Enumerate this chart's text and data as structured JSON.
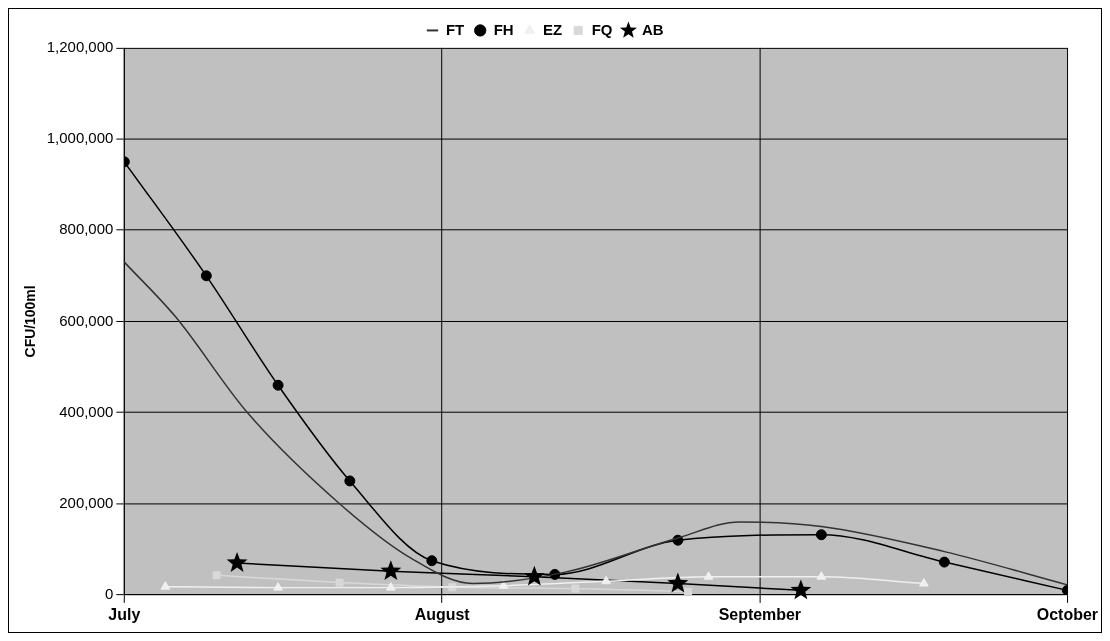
{
  "chart_data": {
    "type": "line",
    "ylabel": "CFU/100ml",
    "xlim": [
      "--07-01",
      "--10-01"
    ],
    "xticks": [
      {
        "value": "--07-01",
        "label": "July"
      },
      {
        "value": "--08-01",
        "label": "August"
      },
      {
        "value": "--09-01",
        "label": "September"
      },
      {
        "value": "--10-01",
        "label": "October"
      }
    ],
    "ylim": [
      0,
      1200000
    ],
    "yticks": [
      {
        "value": 0,
        "label": "0"
      },
      {
        "value": 200000,
        "label": "200,000"
      },
      {
        "value": 400000,
        "label": "400,000"
      },
      {
        "value": 600000,
        "label": "600,000"
      },
      {
        "value": 800000,
        "label": "800,000"
      },
      {
        "value": 1000000,
        "label": "1,000,000"
      },
      {
        "value": 1200000,
        "label": "1,200,000"
      }
    ],
    "grid": true,
    "legend": "top",
    "line_style": "solid",
    "series": [
      {
        "name": "FT",
        "color": "#333333",
        "marker": "none",
        "x": [
          "--07-01",
          "--07-06",
          "--07-13",
          "--07-22",
          "--07-29",
          "--08-04",
          "--08-13",
          "--08-24",
          "--08-30",
          "--09-07",
          "--09-19",
          "--10-01"
        ],
        "values": [
          730000,
          610000,
          400000,
          200000,
          80000,
          25000,
          50000,
          125000,
          160000,
          150000,
          95000,
          22000
        ]
      },
      {
        "name": "FH",
        "color": "#000000",
        "marker": "circle",
        "x": [
          "--07-01",
          "--07-09",
          "--07-16",
          "--07-23",
          "--07-31",
          "--08-12",
          "--08-24",
          "--09-07",
          "--09-19",
          "--10-01"
        ],
        "values": [
          950000,
          700000,
          460000,
          250000,
          75000,
          45000,
          120000,
          132000,
          72000,
          10000
        ]
      },
      {
        "name": "EZ",
        "color": "#f0f0f0",
        "marker": "triangle",
        "x": [
          "--07-05",
          "--07-16",
          "--07-27",
          "--08-07",
          "--08-17",
          "--08-27",
          "--09-07",
          "--09-17"
        ],
        "values": [
          18000,
          16000,
          16000,
          20000,
          30000,
          40000,
          40000,
          25000
        ]
      },
      {
        "name": "FQ",
        "color": "#d8d8d8",
        "marker": "square",
        "x": [
          "--07-10",
          "--07-22",
          "--08-02",
          "--08-14",
          "--08-25"
        ],
        "values": [
          43000,
          27000,
          17000,
          14000,
          7000
        ]
      },
      {
        "name": "AB",
        "color": "#000000",
        "marker": "star",
        "x": [
          "--07-12",
          "--07-27",
          "--08-10",
          "--08-24",
          "--09-05"
        ],
        "values": [
          70000,
          52000,
          40000,
          25000,
          10000
        ]
      }
    ]
  }
}
